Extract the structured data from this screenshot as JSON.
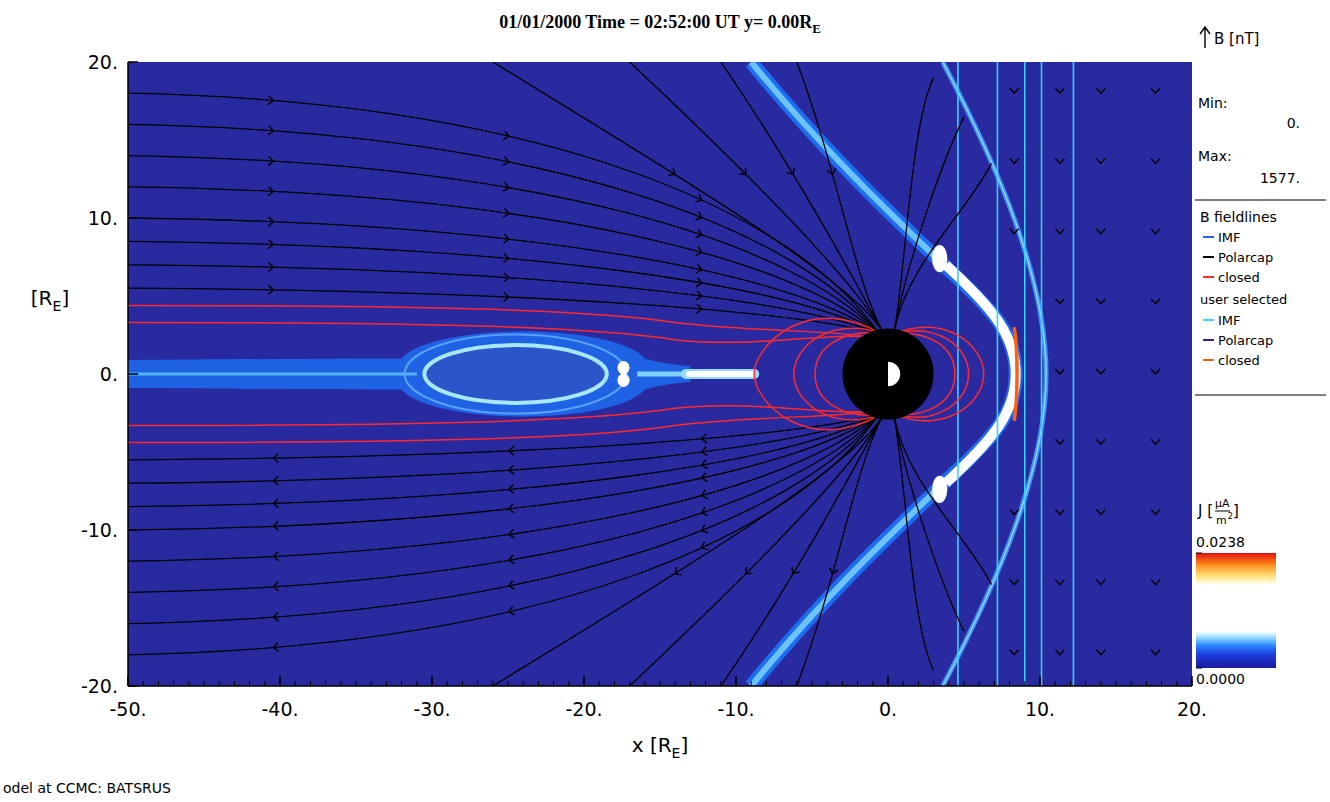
{
  "chart_data": {
    "type": "field",
    "title": [
      "01/01/2000 Time = 02:52:00 UT y= 0.00R",
      "E"
    ],
    "x_label": [
      "x [R",
      "E",
      "]"
    ],
    "y_label": [
      "[R",
      "E",
      "]"
    ],
    "xlim": [
      -50,
      20
    ],
    "xticks": [
      {
        "value": -50,
        "label": "-50."
      },
      {
        "value": -40,
        "label": "-40."
      },
      {
        "value": -30,
        "label": "-30."
      },
      {
        "value": -20,
        "label": "-20."
      },
      {
        "value": -10,
        "label": "-10."
      },
      {
        "value": 0,
        "label": "0."
      },
      {
        "value": 10,
        "label": "10."
      },
      {
        "value": 20,
        "label": "20."
      }
    ],
    "ylim": [
      -20,
      20
    ],
    "yticks": [
      {
        "value": -20,
        "label": "-20."
      },
      {
        "value": -10,
        "label": "-10."
      },
      {
        "value": 0,
        "label": "0."
      },
      {
        "value": 10,
        "label": "10."
      },
      {
        "value": 20,
        "label": "20."
      }
    ],
    "imf_lines_x": [
      4.6,
      7.2,
      9.0,
      10.1,
      12.2
    ],
    "b_label": "B [nT]",
    "b_range": {
      "min_title": "Min:",
      "min": {
        "value": 0,
        "label": "0."
      },
      "max_title": "Max:",
      "max": {
        "value": 1577,
        "label": "1577."
      }
    },
    "fieldline_legend": {
      "title": "B fieldlines",
      "entries": [
        {
          "name": "IMF",
          "color": "#2a5cff"
        },
        {
          "name": "Polarcap",
          "color": "#000000"
        },
        {
          "name": "closed",
          "color": "#ff2a2a"
        }
      ],
      "user_title": "user selected",
      "user_entries": [
        {
          "name": "IMF",
          "color": "#30d4ff"
        },
        {
          "name": "Polarcap",
          "color": "#3a1a9a"
        },
        {
          "name": "closed",
          "color": "#ff6010"
        }
      ]
    },
    "colorbar": {
      "symbol": "J [",
      "numerator": "μA",
      "denominator": "m",
      "exponent": "2",
      "close": "]",
      "range": [
        0,
        0.0238
      ],
      "ticks": [
        {
          "value": 0,
          "label": "0.0000"
        },
        {
          "value": 0.0238,
          "label": "0.0238"
        }
      ]
    },
    "footer": "odel at CCMC: BATSRUS"
  }
}
